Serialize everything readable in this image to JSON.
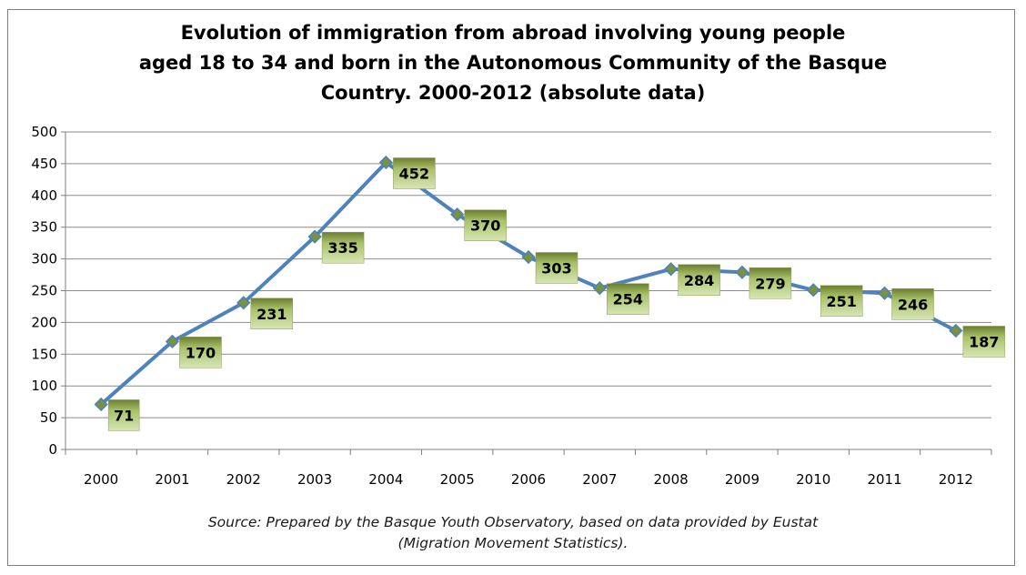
{
  "chart_data": {
    "type": "line",
    "title_lines": [
      "Evolution of immigration from abroad involving young people",
      "aged 18 to 34 and born in the Autonomous Community of the Basque",
      "Country. 2000-2012 (absolute data)"
    ],
    "categories": [
      "2000",
      "2001",
      "2002",
      "2003",
      "2004",
      "2005",
      "2006",
      "2007",
      "2008",
      "2009",
      "2010",
      "2011",
      "2012"
    ],
    "series": [
      {
        "values": [
          71,
          170,
          231,
          335,
          452,
          370,
          303,
          254,
          284,
          279,
          251,
          246,
          187
        ]
      }
    ],
    "y_ticks": [
      "0",
      "50",
      "100",
      "150",
      "200",
      "250",
      "300",
      "350",
      "400",
      "450",
      "500"
    ],
    "ylim": [
      0,
      500
    ],
    "grid": true,
    "data_labels": true,
    "line_color": "#4f81bd",
    "marker_color": "#77933c",
    "label_fill": "#c3d69b",
    "source_lines": [
      "Source: Prepared by the Basque Youth Observatory, based on data provided by Eustat",
      "(Migration Movement Statistics)."
    ]
  }
}
